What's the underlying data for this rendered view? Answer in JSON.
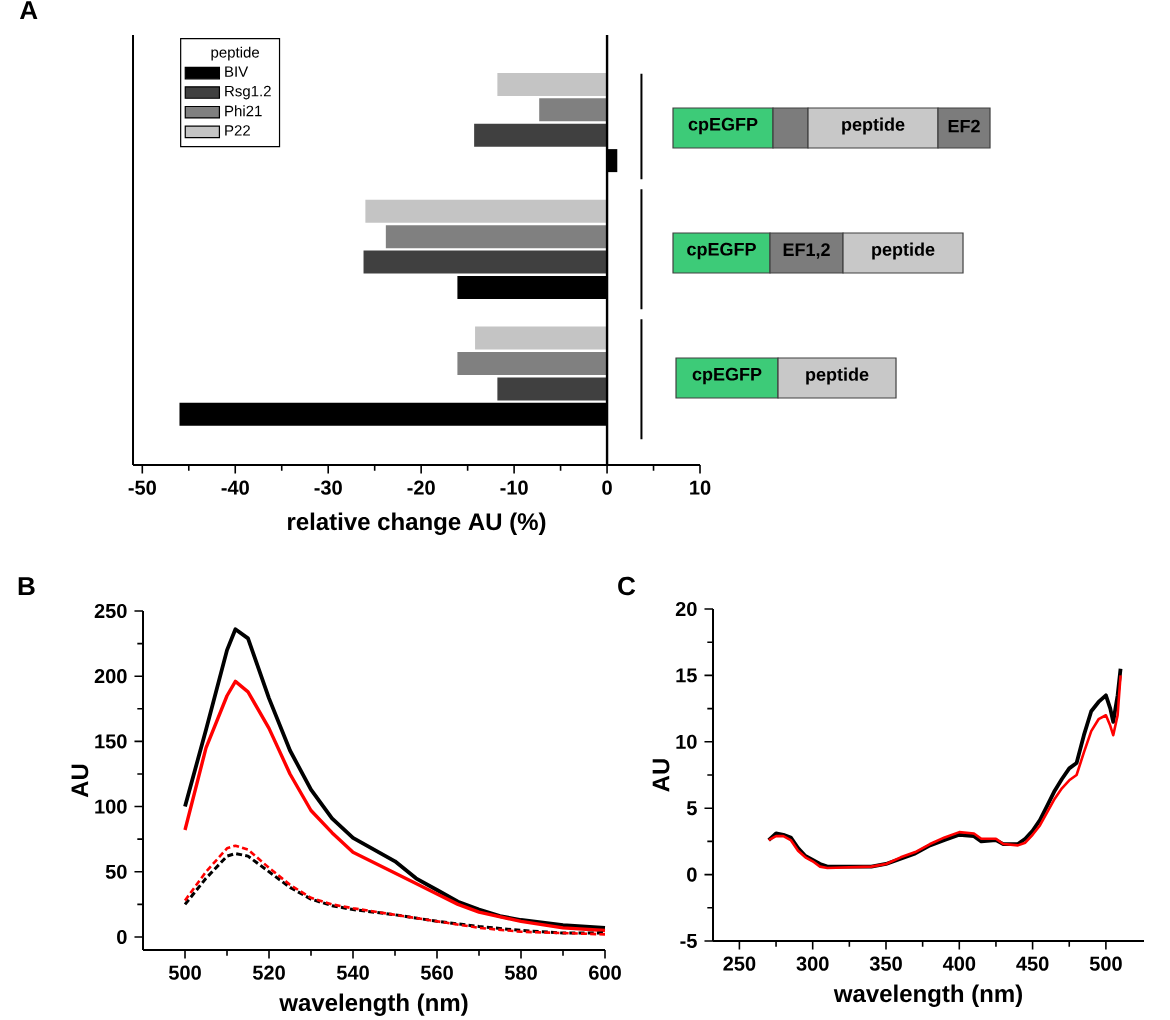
{
  "chart_data": [
    {
      "type": "bar",
      "orientation": "horizontal",
      "title": "A",
      "xlabel": "relative change AU (%)",
      "categories": [
        null,
        null,
        null
      ],
      "legend_title": "peptide",
      "legend": "top left",
      "series": [
        {
          "name": "BIV",
          "color": "#000000",
          "values": [
            1.1,
            -16.1,
            -46
          ]
        },
        {
          "name": "Rsg1.2",
          "color": "#404040",
          "values": [
            -14.3,
            -26.2,
            -11.8
          ]
        },
        {
          "name": "Phi21",
          "color": "#808080",
          "values": [
            -7.3,
            -23.8,
            -16.1
          ]
        },
        {
          "name": "P22",
          "color": "#c4c4c4",
          "values": [
            -11.8,
            -26,
            -14.2
          ]
        }
      ],
      "xlim": [
        -51,
        10
      ],
      "xticks": [
        -50,
        -40,
        -30,
        -20,
        -10,
        0,
        10
      ],
      "ref_lines": [
        {
          "axis": "x",
          "value": 3.7,
          "line_style": "dashed"
        }
      ],
      "annotations": [
        "cpEGFP",
        "peptide",
        "EF2",
        "cpEGFP",
        "EF1,2",
        "peptide",
        "cpEGFP",
        "peptide"
      ]
    },
    {
      "type": "line",
      "title": "B",
      "xlabel": "wavelength (nm)",
      "ylabel": "AU",
      "xlim": [
        490,
        600
      ],
      "ylim": [
        -10,
        250
      ],
      "xticks": [
        500,
        520,
        540,
        560,
        580,
        600
      ],
      "yticks": [
        0,
        50,
        100,
        150,
        200,
        250
      ],
      "series": [
        {
          "color": "#000000",
          "line_style": "solid",
          "x": [
            500,
            505,
            510,
            512,
            515,
            520,
            525,
            530,
            535,
            540,
            545,
            550,
            555,
            560,
            565,
            570,
            575,
            580,
            590,
            600
          ],
          "values": [
            100,
            159,
            220,
            236,
            229,
            183,
            143,
            113,
            91,
            76,
            67,
            58,
            45,
            36,
            27,
            21,
            16,
            13,
            9,
            7
          ]
        },
        {
          "color": "#ff0000",
          "line_style": "solid",
          "x": [
            500,
            505,
            510,
            512,
            515,
            520,
            525,
            530,
            535,
            540,
            545,
            550,
            555,
            560,
            565,
            570,
            580,
            590,
            600
          ],
          "values": [
            82,
            145,
            185,
            196,
            188,
            160,
            125,
            97,
            80,
            65,
            57,
            49,
            41,
            33,
            25,
            19,
            12,
            7,
            5
          ]
        },
        {
          "color": "#000000",
          "line_style": "dashed",
          "x": [
            500,
            505,
            510,
            512,
            515,
            520,
            525,
            530,
            535,
            540,
            550,
            560,
            570,
            580,
            590,
            600
          ],
          "values": [
            25,
            45,
            62,
            64,
            62,
            50,
            38,
            29,
            24,
            21,
            17,
            12,
            8,
            5,
            3,
            3
          ]
        },
        {
          "color": "#ff0000",
          "line_style": "dashed",
          "x": [
            500,
            505,
            510,
            512,
            515,
            520,
            525,
            530,
            535,
            540,
            550,
            560,
            570,
            580,
            590,
            600
          ],
          "values": [
            28,
            50,
            68,
            70,
            67,
            53,
            40,
            30,
            25,
            22,
            17,
            12,
            7,
            4,
            3,
            2
          ]
        }
      ]
    },
    {
      "type": "line",
      "title": "C",
      "xlabel": "wavelength (nm)",
      "ylabel": "AU",
      "xlim": [
        232,
        526
      ],
      "ylim": [
        -5,
        20
      ],
      "xticks": [
        250,
        300,
        350,
        400,
        450,
        500
      ],
      "yticks": [
        -5,
        0,
        5,
        10,
        15,
        20
      ],
      "series": [
        {
          "color": "#000000",
          "x": [
            270,
            275,
            280,
            285,
            290,
            295,
            300,
            305,
            310,
            320,
            340,
            350,
            360,
            370,
            380,
            390,
            400,
            410,
            415,
            425,
            430,
            440,
            445,
            450,
            455,
            460,
            465,
            470,
            475,
            480,
            485,
            490,
            495,
            500,
            503,
            505,
            508,
            510
          ],
          "values": [
            2.6,
            3.1,
            3.0,
            2.8,
            2.0,
            1.4,
            1.1,
            0.8,
            0.6,
            0.6,
            0.6,
            0.8,
            1.2,
            1.6,
            2.2,
            2.6,
            3.0,
            2.9,
            2.5,
            2.6,
            2.3,
            2.3,
            2.7,
            3.3,
            4.1,
            5.2,
            6.3,
            7.2,
            8.0,
            8.4,
            10.5,
            12.3,
            13.0,
            13.5,
            12.5,
            11.5,
            13.5,
            15.5
          ]
        },
        {
          "color": "#ff0000",
          "x": [
            270,
            275,
            280,
            285,
            290,
            295,
            300,
            305,
            310,
            340,
            350,
            360,
            370,
            380,
            390,
            400,
            410,
            415,
            425,
            430,
            440,
            445,
            450,
            455,
            460,
            465,
            470,
            475,
            480,
            485,
            490,
            495,
            500,
            503,
            505,
            508,
            510
          ],
          "values": [
            2.6,
            2.9,
            2.9,
            2.6,
            1.8,
            1.3,
            1.0,
            0.6,
            0.5,
            0.6,
            0.8,
            1.3,
            1.7,
            2.3,
            2.8,
            3.2,
            3.1,
            2.7,
            2.7,
            2.3,
            2.2,
            2.4,
            3.0,
            3.7,
            4.7,
            5.7,
            6.5,
            7.1,
            7.5,
            9.2,
            10.8,
            11.7,
            12.0,
            11.2,
            10.5,
            12.0,
            15.0
          ]
        }
      ]
    }
  ]
}
